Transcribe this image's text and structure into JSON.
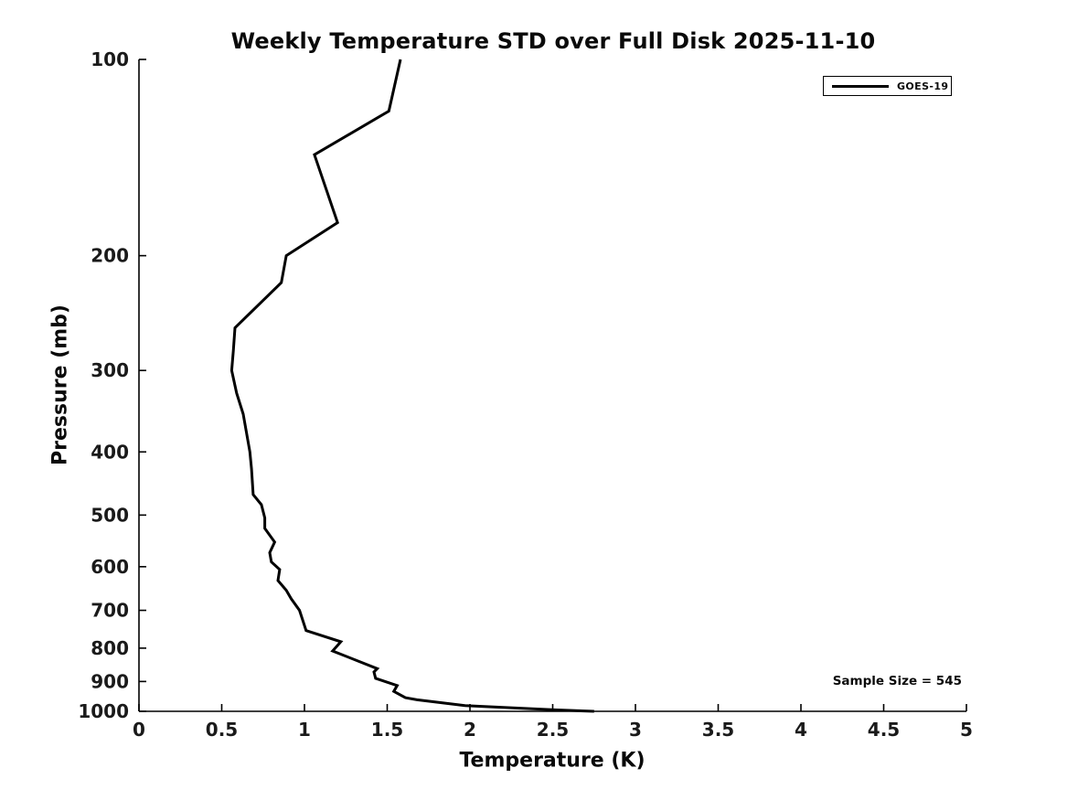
{
  "annotations": {
    "sample_size": "Sample Size = 545"
  },
  "colors": {
    "background": "#ffffff",
    "axis": "#000000",
    "text": "#1a1a1a",
    "series_line": "#000000"
  },
  "chart_data": {
    "type": "line",
    "title": "Weekly Temperature STD over Full Disk 2025-11-10",
    "xlabel": "Temperature (K)",
    "ylabel": "Pressure (mb)",
    "xlim": [
      0,
      5
    ],
    "ylim": [
      100,
      1000
    ],
    "x_scale": "linear",
    "y_scale": "log",
    "y_inverted": true,
    "grid": false,
    "legend_position": "upper right",
    "x_ticks": [
      0,
      0.5,
      1,
      1.5,
      2,
      2.5,
      3,
      3.5,
      4,
      4.5,
      5
    ],
    "x_tick_labels": [
      "0",
      "0.5",
      "1",
      "1.5",
      "2",
      "2.5",
      "3",
      "3.5",
      "4",
      "4.5",
      "5"
    ],
    "y_ticks": [
      100,
      200,
      300,
      400,
      500,
      600,
      700,
      800,
      900,
      1000
    ],
    "y_tick_labels": [
      "100",
      "200",
      "300",
      "400",
      "500",
      "600",
      "700",
      "800",
      "900",
      "1000"
    ],
    "series": [
      {
        "name": "GOES-19",
        "color": "#000000",
        "line_width": 3,
        "pressure_mb": [
          100,
          120,
          140,
          178,
          200,
          220,
          258,
          280,
          300,
          325,
          350,
          400,
          425,
          465,
          482,
          505,
          524,
          550,
          571,
          590,
          606,
          630,
          652,
          672,
          700,
          752,
          782,
          808,
          860,
          870,
          890,
          913,
          932,
          953,
          960,
          980,
          995,
          1000
        ],
        "temperature_k": [
          1.58,
          1.51,
          1.06,
          1.2,
          0.89,
          0.86,
          0.58,
          0.57,
          0.56,
          0.59,
          0.63,
          0.67,
          0.68,
          0.69,
          0.74,
          0.76,
          0.76,
          0.82,
          0.79,
          0.8,
          0.85,
          0.84,
          0.89,
          0.92,
          0.97,
          1.01,
          1.22,
          1.17,
          1.44,
          1.42,
          1.43,
          1.56,
          1.54,
          1.61,
          1.68,
          1.97,
          2.51,
          2.75
        ]
      }
    ]
  }
}
